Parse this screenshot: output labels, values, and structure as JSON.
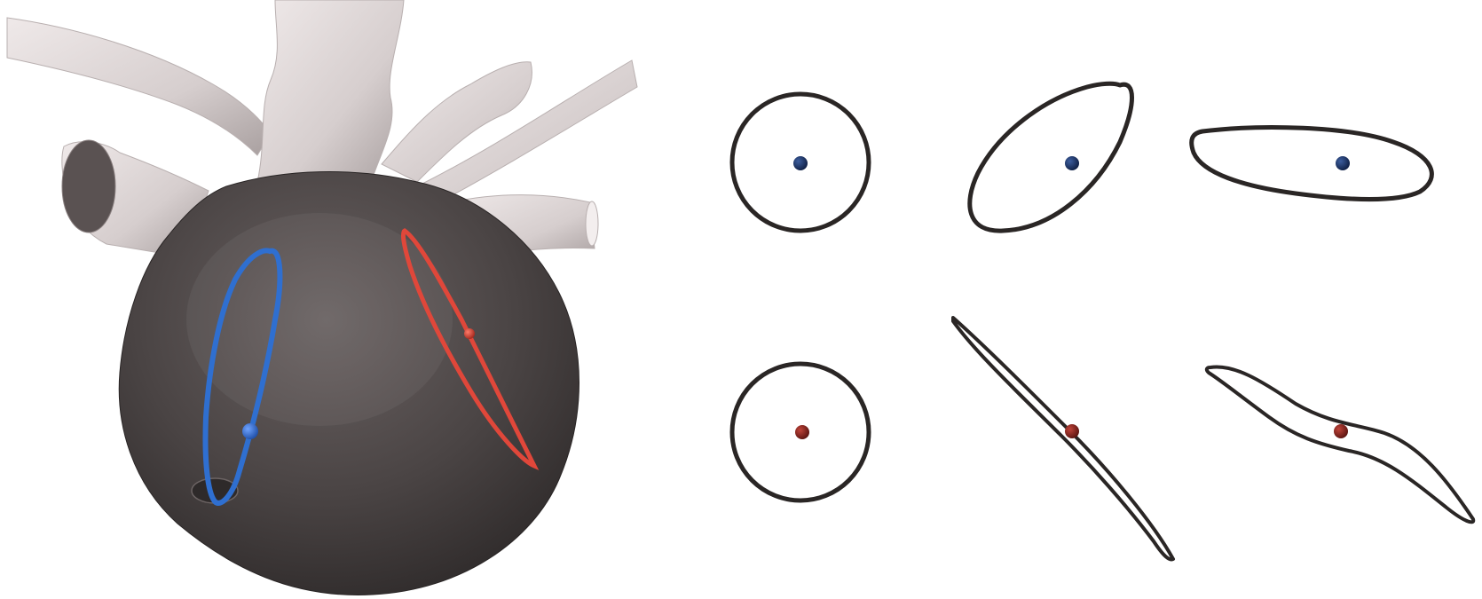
{
  "figure": {
    "background": "#ffffff",
    "panels": {
      "heart_model": {
        "vessel_color": "#d9d2d2",
        "chamber_color": "#4a4444",
        "loop_blue": "#2f6fd0",
        "loop_red": "#e0473a"
      },
      "cross_sections": {
        "outline_color": "#2a2625",
        "rows": [
          {
            "row": "blue",
            "marker_color": "#1c3566",
            "shapes": [
              "circle",
              "oblique-ellipse",
              "flat-ellipse"
            ]
          },
          {
            "row": "red",
            "marker_color": "#8a1e1a",
            "shapes": [
              "circle",
              "collapsed-line",
              "collapsed-wave"
            ]
          }
        ]
      }
    }
  }
}
